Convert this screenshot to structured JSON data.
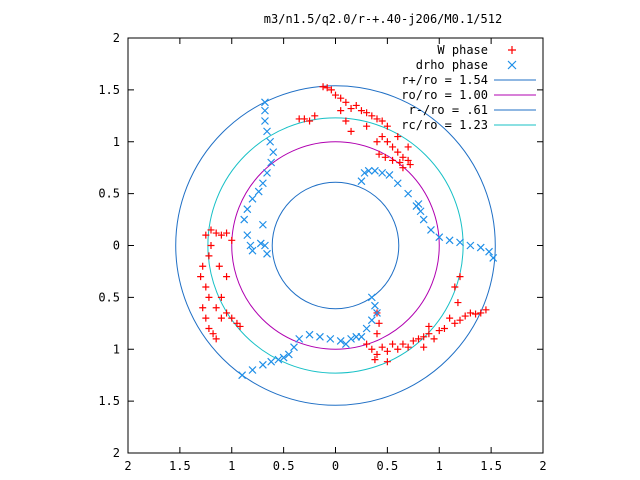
{
  "chart_data": {
    "type": "scatter",
    "title": "m3/n1.5/q2.0/r-+.40-j206/M0.1/512",
    "xlabel": "",
    "ylabel": "",
    "xlim": [
      -2,
      2
    ],
    "ylim": [
      -2,
      2
    ],
    "grid": false,
    "legend_position": "top-right",
    "x_ticks": [
      -2,
      -1.5,
      -1,
      -0.5,
      0,
      0.5,
      1,
      1.5,
      2
    ],
    "x_tick_labels": [
      "2",
      "1.5",
      "1",
      "0.5",
      "0",
      "0.5",
      "1",
      "1.5",
      "2"
    ],
    "y_ticks": [
      2,
      1.5,
      1,
      0.5,
      0,
      -0.5,
      -1,
      -1.5,
      -2
    ],
    "y_tick_labels": [
      "2",
      "1.5",
      "1",
      "0.5",
      "0",
      "0.5",
      "1",
      "1.5",
      "2"
    ],
    "circles": [
      {
        "name": "r+/ro = 1.54",
        "radius": 1.54,
        "color": "#1f6fc5"
      },
      {
        "name": "ro/ro = 1.00",
        "radius": 1.0,
        "color": "#b000b0"
      },
      {
        "name": "r-/ro = .61",
        "radius": 0.61,
        "color": "#1f6fc5"
      },
      {
        "name": "rc/ro = 1.23",
        "radius": 1.23,
        "color": "#17c0c6"
      }
    ],
    "series": [
      {
        "name": "W phase",
        "marker": "+",
        "color": "#ff0000",
        "points": [
          [
            -0.12,
            1.53
          ],
          [
            -0.08,
            1.52
          ],
          [
            -0.04,
            1.5
          ],
          [
            0.0,
            1.45
          ],
          [
            0.05,
            1.42
          ],
          [
            0.1,
            1.38
          ],
          [
            0.15,
            1.32
          ],
          [
            0.2,
            1.35
          ],
          [
            0.25,
            1.3
          ],
          [
            0.3,
            1.28
          ],
          [
            0.35,
            1.25
          ],
          [
            0.4,
            1.22
          ],
          [
            0.45,
            1.2
          ],
          [
            0.5,
            1.15
          ],
          [
            0.45,
            1.05
          ],
          [
            0.4,
            1.0
          ],
          [
            0.5,
            1.0
          ],
          [
            0.55,
            0.95
          ],
          [
            0.6,
            0.9
          ],
          [
            0.65,
            0.85
          ],
          [
            0.7,
            0.82
          ],
          [
            0.62,
            0.8
          ],
          [
            0.55,
            0.82
          ],
          [
            0.48,
            0.85
          ],
          [
            0.42,
            0.88
          ],
          [
            0.6,
            1.05
          ],
          [
            0.7,
            0.95
          ],
          [
            -0.25,
            1.2
          ],
          [
            -0.3,
            1.22
          ],
          [
            -0.35,
            1.22
          ],
          [
            -0.2,
            1.25
          ],
          [
            0.1,
            1.2
          ],
          [
            0.15,
            1.1
          ],
          [
            0.05,
            1.3
          ],
          [
            0.3,
            1.15
          ],
          [
            0.65,
            0.75
          ],
          [
            0.72,
            0.78
          ],
          [
            -1.25,
            0.1
          ],
          [
            -1.2,
            0.15
          ],
          [
            -1.15,
            0.12
          ],
          [
            -1.1,
            0.1
          ],
          [
            -1.05,
            0.12
          ],
          [
            -1.0,
            0.05
          ],
          [
            -1.22,
            -0.1
          ],
          [
            -1.28,
            -0.2
          ],
          [
            -1.3,
            -0.3
          ],
          [
            -1.25,
            -0.4
          ],
          [
            -1.22,
            -0.5
          ],
          [
            -1.28,
            -0.6
          ],
          [
            -1.25,
            -0.7
          ],
          [
            -1.22,
            -0.8
          ],
          [
            -1.18,
            -0.85
          ],
          [
            -1.15,
            -0.9
          ],
          [
            -1.1,
            -0.7
          ],
          [
            -1.15,
            -0.6
          ],
          [
            -1.05,
            -0.65
          ],
          [
            -1.0,
            -0.7
          ],
          [
            -0.95,
            -0.75
          ],
          [
            -0.92,
            -0.78
          ],
          [
            -1.1,
            -0.5
          ],
          [
            -1.05,
            -0.3
          ],
          [
            -1.12,
            -0.2
          ],
          [
            -1.2,
            0.0
          ],
          [
            0.3,
            -0.95
          ],
          [
            0.35,
            -1.0
          ],
          [
            0.4,
            -1.05
          ],
          [
            0.45,
            -0.98
          ],
          [
            0.5,
            -1.02
          ],
          [
            0.55,
            -0.95
          ],
          [
            0.6,
            -1.0
          ],
          [
            0.65,
            -0.95
          ],
          [
            0.7,
            -0.98
          ],
          [
            0.75,
            -0.92
          ],
          [
            0.8,
            -0.9
          ],
          [
            0.85,
            -0.88
          ],
          [
            0.9,
            -0.85
          ],
          [
            0.95,
            -0.9
          ],
          [
            1.0,
            -0.82
          ],
          [
            1.05,
            -0.8
          ],
          [
            1.1,
            -0.7
          ],
          [
            1.15,
            -0.75
          ],
          [
            1.2,
            -0.72
          ],
          [
            1.25,
            -0.68
          ],
          [
            1.3,
            -0.65
          ],
          [
            1.35,
            -0.66
          ],
          [
            1.4,
            -0.65
          ],
          [
            1.45,
            -0.62
          ],
          [
            1.18,
            -0.55
          ],
          [
            1.15,
            -0.4
          ],
          [
            1.2,
            -0.3
          ],
          [
            0.4,
            -0.85
          ],
          [
            0.42,
            -0.75
          ],
          [
            0.4,
            -0.65
          ],
          [
            0.38,
            -1.1
          ],
          [
            0.5,
            -1.12
          ],
          [
            0.85,
            -0.98
          ],
          [
            0.9,
            -0.78
          ]
        ]
      },
      {
        "name": "drho phase",
        "marker": "x",
        "color": "#1f8fe8",
        "points": [
          [
            -0.68,
            1.38
          ],
          [
            -0.68,
            1.3
          ],
          [
            -0.68,
            1.2
          ],
          [
            -0.66,
            1.1
          ],
          [
            -0.63,
            1.0
          ],
          [
            -0.6,
            0.9
          ],
          [
            -0.62,
            0.8
          ],
          [
            -0.66,
            0.7
          ],
          [
            -0.7,
            0.6
          ],
          [
            -0.74,
            0.52
          ],
          [
            -0.8,
            0.45
          ],
          [
            -0.85,
            0.35
          ],
          [
            -0.88,
            0.25
          ],
          [
            -0.85,
            0.1
          ],
          [
            -0.82,
            0.0
          ],
          [
            -0.8,
            -0.05
          ],
          [
            -0.72,
            0.02
          ],
          [
            -0.7,
            0.2
          ],
          [
            -0.68,
            0.0
          ],
          [
            -0.66,
            -0.08
          ],
          [
            0.25,
            0.62
          ],
          [
            0.28,
            0.7
          ],
          [
            0.32,
            0.72
          ],
          [
            0.38,
            0.72
          ],
          [
            0.45,
            0.7
          ],
          [
            0.52,
            0.68
          ],
          [
            0.6,
            0.6
          ],
          [
            0.7,
            0.5
          ],
          [
            0.78,
            0.38
          ],
          [
            0.85,
            0.25
          ],
          [
            0.92,
            0.15
          ],
          [
            1.0,
            0.08
          ],
          [
            1.1,
            0.05
          ],
          [
            1.2,
            0.03
          ],
          [
            1.3,
            0.0
          ],
          [
            1.4,
            -0.02
          ],
          [
            1.48,
            -0.06
          ],
          [
            1.52,
            -0.12
          ],
          [
            0.8,
            0.4
          ],
          [
            0.82,
            0.33
          ],
          [
            0.35,
            -0.5
          ],
          [
            0.38,
            -0.58
          ],
          [
            0.4,
            -0.65
          ],
          [
            0.35,
            -0.72
          ],
          [
            0.3,
            -0.8
          ],
          [
            0.25,
            -0.88
          ],
          [
            0.15,
            -0.9
          ],
          [
            0.05,
            -0.92
          ],
          [
            -0.05,
            -0.9
          ],
          [
            -0.15,
            -0.88
          ],
          [
            -0.25,
            -0.86
          ],
          [
            -0.35,
            -0.9
          ],
          [
            -0.4,
            -0.98
          ],
          [
            -0.45,
            -1.05
          ],
          [
            -0.55,
            -1.1
          ],
          [
            -0.7,
            -1.15
          ],
          [
            -0.8,
            -1.2
          ],
          [
            -0.9,
            -1.25
          ],
          [
            0.2,
            -0.88
          ],
          [
            0.1,
            -0.95
          ],
          [
            -0.5,
            -1.08
          ],
          [
            -0.62,
            -1.12
          ]
        ]
      }
    ]
  }
}
